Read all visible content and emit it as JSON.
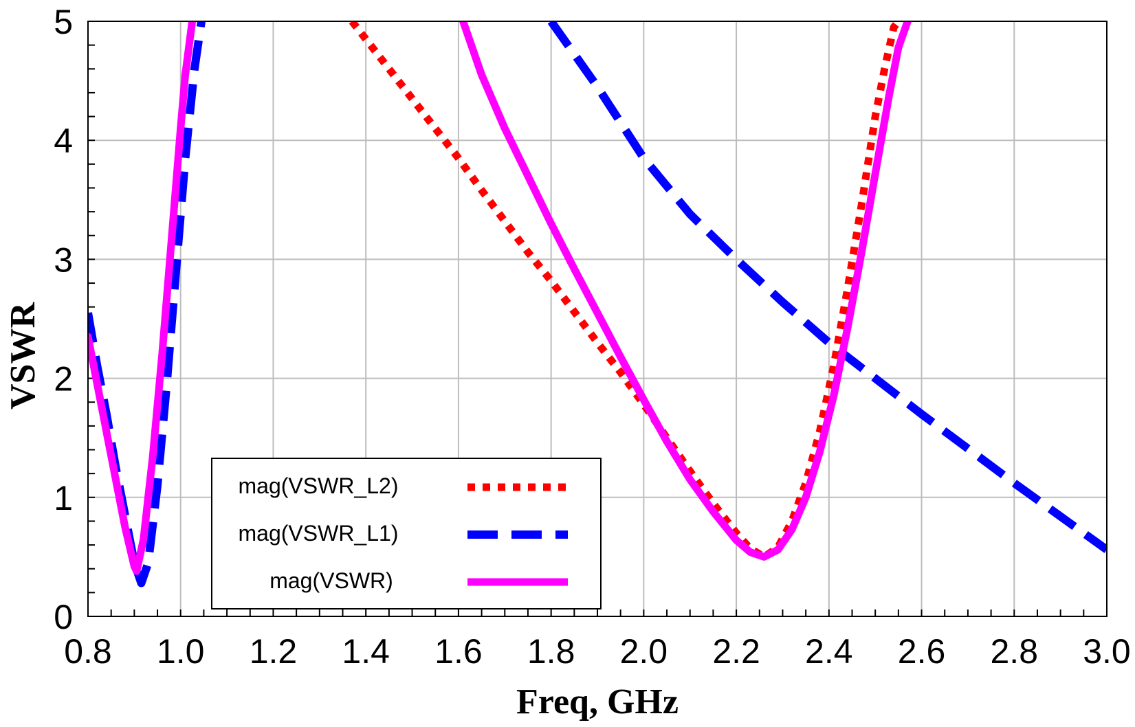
{
  "chart_data": {
    "type": "line",
    "title": "",
    "xlabel": "Freq, GHz",
    "ylabel": "VSWR",
    "xlim": [
      0.8,
      3.0
    ],
    "ylim": [
      0,
      5
    ],
    "x_ticks": [
      "0.8",
      "1.0",
      "1.2",
      "1.4",
      "1.6",
      "1.8",
      "2.0",
      "2.2",
      "2.4",
      "2.6",
      "2.8",
      "3.0"
    ],
    "y_ticks": [
      "0",
      "1",
      "2",
      "3",
      "4",
      "5"
    ],
    "grid": true,
    "legend_position": "bottom-left",
    "series": [
      {
        "name": "mag(VSWR_L2)",
        "color": "#ff0000",
        "style": "dotted",
        "x": [
          1.37,
          1.4,
          1.45,
          1.5,
          1.55,
          1.6,
          1.65,
          1.7,
          1.75,
          1.8,
          1.85,
          1.9,
          1.95,
          2.0,
          2.05,
          2.1,
          2.15,
          2.2,
          2.23,
          2.26,
          2.29,
          2.32,
          2.35,
          2.38,
          2.41,
          2.44,
          2.47,
          2.5,
          2.52,
          2.54,
          2.55
        ],
        "y": [
          5.0,
          4.85,
          4.6,
          4.35,
          4.1,
          3.85,
          3.58,
          3.32,
          3.06,
          2.82,
          2.56,
          2.3,
          2.05,
          1.78,
          1.5,
          1.22,
          0.95,
          0.7,
          0.57,
          0.5,
          0.58,
          0.8,
          1.12,
          1.55,
          2.1,
          2.75,
          3.45,
          4.2,
          4.6,
          4.95,
          5.0
        ]
      },
      {
        "name": "mag(VSWR_L1)",
        "color": "#0000ff",
        "style": "dashed",
        "x": [
          0.8,
          0.82,
          0.84,
          0.86,
          0.88,
          0.9,
          0.915,
          0.93,
          0.95,
          0.97,
          0.99,
          1.01,
          1.03,
          1.045,
          1.8,
          1.9,
          2.0,
          2.1,
          2.2,
          2.3,
          2.4,
          2.5,
          2.6,
          2.7,
          2.8,
          2.9,
          3.0
        ],
        "y": [
          2.55,
          2.1,
          1.7,
          1.25,
          0.85,
          0.45,
          0.28,
          0.45,
          1.1,
          1.95,
          2.9,
          3.85,
          4.6,
          5.0,
          5.0,
          4.45,
          3.85,
          3.38,
          3.0,
          2.64,
          2.3,
          2.0,
          1.7,
          1.41,
          1.12,
          0.84,
          0.56
        ]
      },
      {
        "name": "mag(VSWR)",
        "color": "#ff00ff",
        "style": "solid",
        "x": [
          0.8,
          0.82,
          0.84,
          0.86,
          0.88,
          0.9,
          0.905,
          0.92,
          0.94,
          0.96,
          0.98,
          1.0,
          1.01,
          1.025,
          1.61,
          1.65,
          1.7,
          1.75,
          1.8,
          1.85,
          1.9,
          1.95,
          2.0,
          2.05,
          2.1,
          2.15,
          2.2,
          2.23,
          2.26,
          2.29,
          2.32,
          2.35,
          2.38,
          2.41,
          2.44,
          2.47,
          2.5,
          2.53,
          2.55,
          2.57
        ],
        "y": [
          2.35,
          1.95,
          1.55,
          1.15,
          0.75,
          0.42,
          0.38,
          0.65,
          1.35,
          2.2,
          3.15,
          4.1,
          4.55,
          5.0,
          5.0,
          4.55,
          4.1,
          3.7,
          3.3,
          2.92,
          2.55,
          2.18,
          1.82,
          1.47,
          1.15,
          0.88,
          0.64,
          0.54,
          0.5,
          0.56,
          0.73,
          1.0,
          1.38,
          1.85,
          2.42,
          3.05,
          3.72,
          4.38,
          4.78,
          5.0
        ]
      }
    ]
  }
}
